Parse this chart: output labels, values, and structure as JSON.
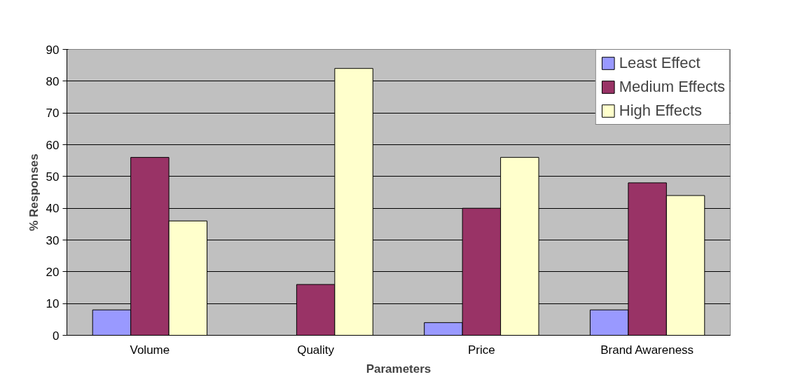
{
  "chart_data": {
    "type": "bar",
    "xlabel": "Parameters",
    "ylabel": "% Responses",
    "categories": [
      "Volume",
      "Quality",
      "Price",
      "Brand Awareness"
    ],
    "series": [
      {
        "name": "Least Effect",
        "color": "#9999ff",
        "values": [
          8,
          null,
          4,
          8
        ]
      },
      {
        "name": "Medium Effects",
        "color": "#993366",
        "values": [
          56,
          16,
          40,
          48
        ]
      },
      {
        "name": "High Effects",
        "color": "#ffffcc",
        "values": [
          36,
          84,
          56,
          44
        ]
      }
    ],
    "ylim": [
      0,
      90
    ],
    "yticks": [
      0,
      10,
      20,
      30,
      40,
      50,
      60,
      70,
      80,
      90
    ],
    "grid": "y",
    "legend": "top right"
  }
}
